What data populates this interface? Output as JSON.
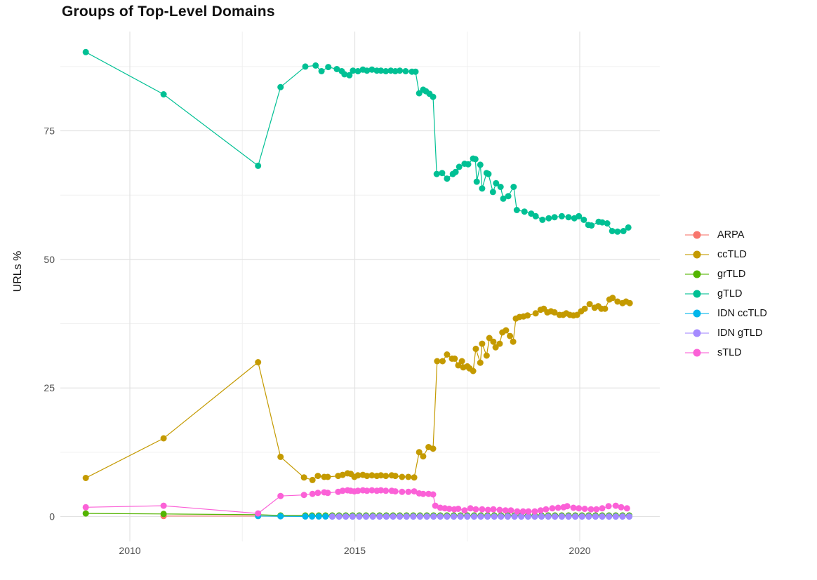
{
  "title": "Groups of Top-Level Domains",
  "axes": {
    "y_label": "URLs %",
    "y_ticks": [
      "0",
      "25",
      "50",
      "75"
    ],
    "x_ticks": [
      "2010",
      "2015",
      "2020"
    ]
  },
  "legend": {
    "items": [
      {
        "label": "ARPA",
        "color": "#F8766D"
      },
      {
        "label": "ccTLD",
        "color": "#C49A00"
      },
      {
        "label": "grTLD",
        "color": "#53B400"
      },
      {
        "label": "gTLD",
        "color": "#00C094"
      },
      {
        "label": "IDN ccTLD",
        "color": "#00B6EB"
      },
      {
        "label": "IDN gTLD",
        "color": "#A58AFF"
      },
      {
        "label": "sTLD",
        "color": "#FB61D7"
      }
    ]
  },
  "chart_data": {
    "type": "line",
    "title": "Groups of Top-Level Domains",
    "xlabel": "",
    "ylabel": "URLs %",
    "xlim": [
      2008.5,
      2021.8
    ],
    "ylim": [
      0,
      94
    ],
    "x_ticks": [
      2010,
      2015,
      2020
    ],
    "x_minor_ticks": [
      2012.5,
      2017.5
    ],
    "y_ticks": [
      0,
      25,
      50,
      75
    ],
    "y_minor_ticks": [
      12.5,
      37.5,
      62.5,
      87.5
    ],
    "grid": true,
    "legend_position": "right",
    "marker": "point",
    "series": [
      {
        "name": "ARPA",
        "color": "#F8766D",
        "points": [
          [
            2010.75,
            0.1
          ],
          [
            2012.85,
            0.1
          ],
          [
            2013.35,
            0.05
          ]
        ],
        "runs": [
          {
            "from": 2013.9,
            "to": 2021.1,
            "step": 0.15,
            "value": 0.05
          }
        ]
      },
      {
        "name": "ccTLD",
        "color": "#C49A00",
        "points": [
          [
            2009.02,
            7.5
          ],
          [
            2010.75,
            15.2
          ],
          [
            2012.85,
            30.0
          ],
          [
            2013.35,
            11.6
          ],
          [
            2013.87,
            7.6
          ],
          [
            2014.06,
            7.1
          ],
          [
            2014.18,
            7.9
          ],
          [
            2014.32,
            7.7
          ],
          [
            2014.4,
            7.7
          ],
          [
            2014.63,
            7.9
          ],
          [
            2014.73,
            8.1
          ],
          [
            2014.84,
            8.4
          ],
          [
            2014.91,
            8.3
          ],
          [
            2014.99,
            7.7
          ],
          [
            2015.07,
            8.0
          ],
          [
            2015.18,
            8.1
          ],
          [
            2015.27,
            7.9
          ],
          [
            2015.38,
            8.0
          ],
          [
            2015.49,
            7.9
          ],
          [
            2015.58,
            8.0
          ],
          [
            2015.69,
            7.9
          ],
          [
            2015.82,
            8.0
          ],
          [
            2015.9,
            7.9
          ],
          [
            2016.05,
            7.7
          ],
          [
            2016.19,
            7.7
          ],
          [
            2016.32,
            7.6
          ],
          [
            2016.43,
            12.5
          ],
          [
            2016.52,
            11.7
          ],
          [
            2016.64,
            13.5
          ],
          [
            2016.74,
            13.2
          ],
          [
            2016.83,
            30.2
          ],
          [
            2016.95,
            30.2
          ],
          [
            2017.05,
            31.5
          ],
          [
            2017.16,
            30.7
          ],
          [
            2017.22,
            30.7
          ],
          [
            2017.3,
            29.4
          ],
          [
            2017.38,
            30.2
          ],
          [
            2017.41,
            29.0
          ],
          [
            2017.5,
            29.2
          ],
          [
            2017.55,
            28.8
          ],
          [
            2017.63,
            28.3
          ],
          [
            2017.69,
            32.6
          ],
          [
            2017.79,
            29.9
          ],
          [
            2017.83,
            33.6
          ],
          [
            2017.93,
            31.3
          ],
          [
            2017.99,
            34.7
          ],
          [
            2018.08,
            34.0
          ],
          [
            2018.13,
            32.9
          ],
          [
            2018.22,
            33.6
          ],
          [
            2018.28,
            35.8
          ],
          [
            2018.36,
            36.2
          ],
          [
            2018.45,
            35.1
          ],
          [
            2018.52,
            34.0
          ],
          [
            2018.58,
            38.5
          ],
          [
            2018.66,
            38.8
          ],
          [
            2018.75,
            38.9
          ],
          [
            2018.84,
            39.1
          ],
          [
            2019.02,
            39.5
          ],
          [
            2019.13,
            40.2
          ],
          [
            2019.2,
            40.4
          ],
          [
            2019.28,
            39.7
          ],
          [
            2019.36,
            39.9
          ],
          [
            2019.44,
            39.7
          ],
          [
            2019.55,
            39.2
          ],
          [
            2019.63,
            39.2
          ],
          [
            2019.7,
            39.5
          ],
          [
            2019.78,
            39.2
          ],
          [
            2019.86,
            39.1
          ],
          [
            2019.94,
            39.2
          ],
          [
            2020.03,
            39.9
          ],
          [
            2020.11,
            40.4
          ],
          [
            2020.22,
            41.3
          ],
          [
            2020.33,
            40.6
          ],
          [
            2020.41,
            40.9
          ],
          [
            2020.48,
            40.4
          ],
          [
            2020.56,
            40.4
          ],
          [
            2020.66,
            42.2
          ],
          [
            2020.73,
            42.5
          ],
          [
            2020.84,
            41.8
          ],
          [
            2020.95,
            41.5
          ],
          [
            2021.03,
            41.8
          ],
          [
            2021.11,
            41.5
          ]
        ]
      },
      {
        "name": "grTLD",
        "color": "#53B400",
        "points": [
          [
            2009.02,
            0.6
          ],
          [
            2010.75,
            0.5
          ],
          [
            2012.85,
            0.35
          ],
          [
            2013.35,
            0.2
          ]
        ],
        "runs": [
          {
            "from": 2013.9,
            "to": 2021.1,
            "step": 0.15,
            "value": 0.2
          }
        ]
      },
      {
        "name": "gTLD",
        "color": "#00C094",
        "points": [
          [
            2009.02,
            90.3
          ],
          [
            2010.75,
            82.1
          ],
          [
            2012.85,
            68.2
          ],
          [
            2013.35,
            83.5
          ],
          [
            2013.9,
            87.5
          ],
          [
            2014.13,
            87.7
          ],
          [
            2014.26,
            86.6
          ],
          [
            2014.41,
            87.4
          ],
          [
            2014.6,
            87.0
          ],
          [
            2014.71,
            86.6
          ],
          [
            2014.77,
            86.0
          ],
          [
            2014.88,
            85.8
          ],
          [
            2014.96,
            86.7
          ],
          [
            2015.07,
            86.6
          ],
          [
            2015.18,
            86.9
          ],
          [
            2015.27,
            86.7
          ],
          [
            2015.38,
            86.9
          ],
          [
            2015.49,
            86.7
          ],
          [
            2015.58,
            86.7
          ],
          [
            2015.69,
            86.6
          ],
          [
            2015.8,
            86.7
          ],
          [
            2015.9,
            86.6
          ],
          [
            2016.0,
            86.7
          ],
          [
            2016.13,
            86.6
          ],
          [
            2016.27,
            86.5
          ],
          [
            2016.35,
            86.5
          ],
          [
            2016.43,
            82.3
          ],
          [
            2016.52,
            83.0
          ],
          [
            2016.58,
            82.7
          ],
          [
            2016.66,
            82.2
          ],
          [
            2016.74,
            81.6
          ],
          [
            2016.82,
            66.6
          ],
          [
            2016.94,
            66.8
          ],
          [
            2017.05,
            65.7
          ],
          [
            2017.18,
            66.6
          ],
          [
            2017.24,
            67.0
          ],
          [
            2017.32,
            68.0
          ],
          [
            2017.44,
            68.6
          ],
          [
            2017.52,
            68.5
          ],
          [
            2017.63,
            69.6
          ],
          [
            2017.68,
            69.5
          ],
          [
            2017.71,
            65.1
          ],
          [
            2017.79,
            68.4
          ],
          [
            2017.83,
            63.8
          ],
          [
            2017.93,
            66.8
          ],
          [
            2017.97,
            66.6
          ],
          [
            2018.07,
            63.1
          ],
          [
            2018.14,
            64.8
          ],
          [
            2018.24,
            64.1
          ],
          [
            2018.3,
            61.8
          ],
          [
            2018.41,
            62.3
          ],
          [
            2018.53,
            64.1
          ],
          [
            2018.6,
            59.6
          ],
          [
            2018.77,
            59.3
          ],
          [
            2018.92,
            58.9
          ],
          [
            2019.02,
            58.4
          ],
          [
            2019.17,
            57.7
          ],
          [
            2019.31,
            58.0
          ],
          [
            2019.44,
            58.2
          ],
          [
            2019.6,
            58.4
          ],
          [
            2019.75,
            58.2
          ],
          [
            2019.88,
            58.0
          ],
          [
            2019.98,
            58.4
          ],
          [
            2020.09,
            57.7
          ],
          [
            2020.19,
            56.7
          ],
          [
            2020.26,
            56.6
          ],
          [
            2020.42,
            57.3
          ],
          [
            2020.5,
            57.2
          ],
          [
            2020.61,
            57.0
          ],
          [
            2020.72,
            55.5
          ],
          [
            2020.84,
            55.4
          ],
          [
            2020.97,
            55.5
          ],
          [
            2021.08,
            56.2
          ]
        ]
      },
      {
        "name": "IDN ccTLD",
        "color": "#00B6EB",
        "points": [
          [
            2012.85,
            0.1
          ],
          [
            2013.35,
            0.05
          ]
        ],
        "runs": [
          {
            "from": 2013.9,
            "to": 2021.1,
            "step": 0.15,
            "value": 0.02
          }
        ]
      },
      {
        "name": "IDN gTLD",
        "color": "#A58AFF",
        "points": [],
        "runs": [
          {
            "from": 2014.5,
            "to": 2021.1,
            "step": 0.15,
            "value": 0.0
          }
        ]
      },
      {
        "name": "sTLD",
        "color": "#FB61D7",
        "points": [
          [
            2009.02,
            1.8
          ],
          [
            2010.75,
            2.1
          ],
          [
            2012.85,
            0.6
          ],
          [
            2013.35,
            4.0
          ],
          [
            2013.87,
            4.2
          ],
          [
            2014.06,
            4.4
          ],
          [
            2014.18,
            4.6
          ],
          [
            2014.32,
            4.7
          ],
          [
            2014.4,
            4.6
          ],
          [
            2014.63,
            4.8
          ],
          [
            2014.73,
            5.0
          ],
          [
            2014.84,
            5.1
          ],
          [
            2014.91,
            5.0
          ],
          [
            2014.99,
            4.9
          ],
          [
            2015.07,
            5.0
          ],
          [
            2015.18,
            5.1
          ],
          [
            2015.27,
            5.0
          ],
          [
            2015.38,
            5.1
          ],
          [
            2015.49,
            5.0
          ],
          [
            2015.58,
            5.1
          ],
          [
            2015.69,
            5.0
          ],
          [
            2015.82,
            5.0
          ],
          [
            2015.9,
            4.9
          ],
          [
            2016.05,
            4.8
          ],
          [
            2016.19,
            4.8
          ],
          [
            2016.32,
            4.9
          ],
          [
            2016.43,
            4.5
          ],
          [
            2016.52,
            4.4
          ],
          [
            2016.64,
            4.4
          ],
          [
            2016.74,
            4.3
          ],
          [
            2016.79,
            2.1
          ],
          [
            2016.9,
            1.7
          ],
          [
            2017.0,
            1.6
          ],
          [
            2017.1,
            1.5
          ],
          [
            2017.21,
            1.4
          ],
          [
            2017.3,
            1.5
          ],
          [
            2017.44,
            1.2
          ],
          [
            2017.57,
            1.6
          ],
          [
            2017.69,
            1.4
          ],
          [
            2017.83,
            1.4
          ],
          [
            2017.96,
            1.3
          ],
          [
            2018.08,
            1.4
          ],
          [
            2018.22,
            1.3
          ],
          [
            2018.35,
            1.2
          ],
          [
            2018.47,
            1.2
          ],
          [
            2018.61,
            1.0
          ],
          [
            2018.74,
            1.0
          ],
          [
            2018.86,
            1.0
          ],
          [
            2019.0,
            1.0
          ],
          [
            2019.13,
            1.2
          ],
          [
            2019.25,
            1.4
          ],
          [
            2019.39,
            1.6
          ],
          [
            2019.52,
            1.7
          ],
          [
            2019.64,
            1.8
          ],
          [
            2019.72,
            2.0
          ],
          [
            2019.86,
            1.7
          ],
          [
            2019.98,
            1.6
          ],
          [
            2020.11,
            1.5
          ],
          [
            2020.25,
            1.4
          ],
          [
            2020.37,
            1.4
          ],
          [
            2020.5,
            1.6
          ],
          [
            2020.64,
            2.0
          ],
          [
            2020.8,
            2.1
          ],
          [
            2020.92,
            1.8
          ],
          [
            2021.05,
            1.6
          ]
        ]
      }
    ]
  }
}
